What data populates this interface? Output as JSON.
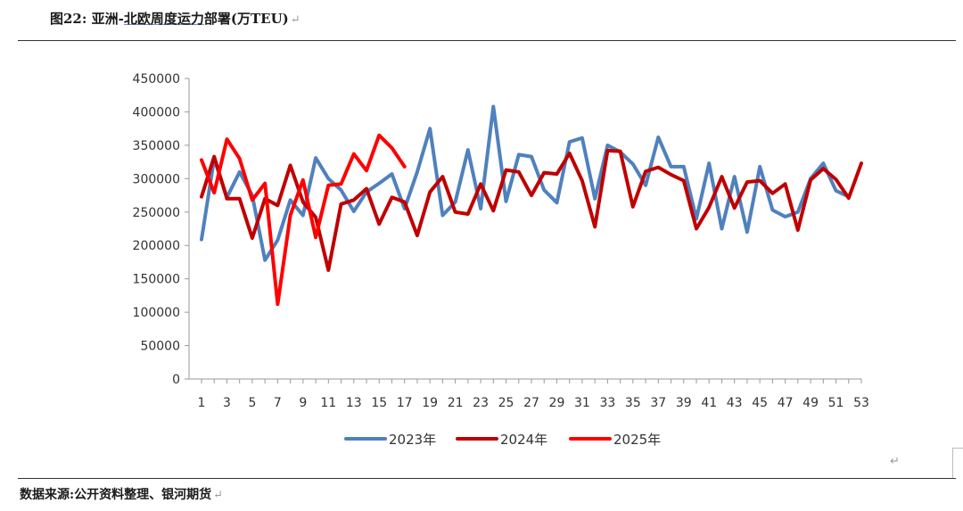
{
  "header": {
    "figure_no": "图22:",
    "title_part1": "亚洲-",
    "title_part2": "北欧周度运力",
    "title_part3": "部署(万TEU)"
  },
  "footer": {
    "source": "数据来源:公开资料整理、银河期货"
  },
  "colors": {
    "s2023": "#4f81bd",
    "s2024": "#c00000",
    "s2025": "#ff0000",
    "axis": "#999999"
  },
  "chart_data": {
    "type": "line",
    "title": "亚洲-北欧周度运力部署(万TEU)",
    "xlabel": "",
    "ylabel": "",
    "ylim": [
      0,
      450000
    ],
    "yticks": [
      0,
      50000,
      100000,
      150000,
      200000,
      250000,
      300000,
      350000,
      400000,
      450000
    ],
    "xlim": [
      1,
      53
    ],
    "xticks": [
      1,
      3,
      5,
      7,
      9,
      11,
      13,
      15,
      17,
      19,
      21,
      23,
      25,
      27,
      29,
      31,
      33,
      35,
      37,
      39,
      41,
      43,
      45,
      47,
      49,
      51,
      53
    ],
    "legend_position": "bottom",
    "series": [
      {
        "name": "2023年",
        "color": "#4f81bd",
        "x": [
          1,
          2,
          3,
          4,
          5,
          6,
          7,
          8,
          9,
          10,
          11,
          12,
          13,
          14,
          15,
          16,
          17,
          18,
          19,
          20,
          21,
          22,
          23,
          24,
          25,
          26,
          27,
          28,
          29,
          30,
          31,
          32,
          33,
          34,
          35,
          36,
          37,
          38,
          39,
          40,
          41,
          42,
          43,
          44,
          45,
          46,
          47,
          48,
          49,
          50,
          51,
          52
        ],
        "values": [
          209000,
          330000,
          272000,
          310000,
          275000,
          178000,
          208000,
          268000,
          245000,
          331000,
          300000,
          283000,
          251000,
          280000,
          293000,
          307000,
          255000,
          310000,
          375000,
          245000,
          265000,
          343000,
          255000,
          408000,
          266000,
          336000,
          333000,
          283000,
          264000,
          355000,
          361000,
          270000,
          350000,
          340000,
          322000,
          290000,
          362000,
          318000,
          318000,
          240000,
          323000,
          225000,
          303000,
          220000,
          318000,
          253000,
          243000,
          250000,
          300000,
          323000,
          282000,
          273000
        ]
      },
      {
        "name": "2024年",
        "color": "#c00000",
        "x": [
          1,
          2,
          3,
          4,
          5,
          6,
          7,
          8,
          9,
          10,
          11,
          12,
          13,
          14,
          15,
          16,
          17,
          18,
          19,
          20,
          21,
          22,
          23,
          24,
          25,
          26,
          27,
          28,
          29,
          30,
          31,
          32,
          33,
          34,
          35,
          36,
          37,
          38,
          39,
          40,
          41,
          42,
          43,
          44,
          45,
          46,
          47,
          48,
          49,
          50,
          51,
          52,
          53
        ],
        "values": [
          273000,
          333000,
          270000,
          270000,
          211000,
          270000,
          260000,
          320000,
          265000,
          242000,
          163000,
          262000,
          268000,
          285000,
          232000,
          272000,
          265000,
          215000,
          280000,
          303000,
          250000,
          247000,
          292000,
          252000,
          313000,
          310000,
          275000,
          309000,
          307000,
          338000,
          297000,
          228000,
          342000,
          341000,
          258000,
          311000,
          317000,
          306000,
          297000,
          225000,
          257000,
          303000,
          256000,
          295000,
          297000,
          278000,
          292000,
          223000,
          298000,
          315000,
          299000,
          271000,
          323000
        ]
      },
      {
        "name": "2025年",
        "color": "#ff0000",
        "x": [
          1,
          2,
          3,
          4,
          5,
          6,
          7,
          8,
          9,
          10,
          11,
          12,
          13,
          14,
          15,
          16,
          17
        ],
        "values": [
          328000,
          279000,
          359000,
          330000,
          268000,
          293000,
          112000,
          245000,
          298000,
          212000,
          290000,
          292000,
          337000,
          312000,
          365000,
          346000,
          318000
        ]
      }
    ]
  }
}
